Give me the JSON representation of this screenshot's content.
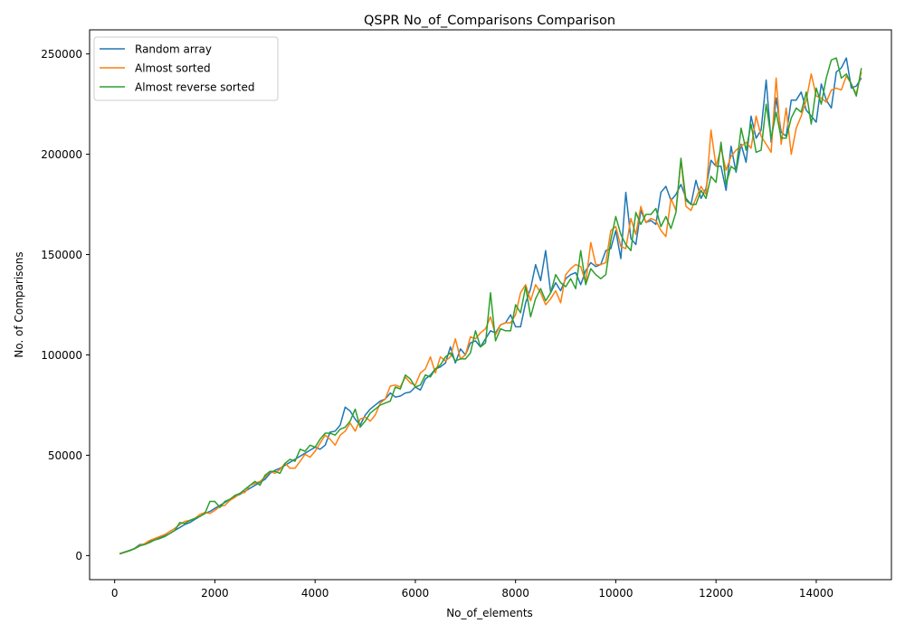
{
  "chart_data": {
    "type": "line",
    "title": "QSPR No_of_Comparisons Comparison",
    "xlabel": "No_of_elements",
    "ylabel": "No. of Comparisons",
    "xlim": [
      -500,
      15500
    ],
    "ylim": [
      -12000,
      262000
    ],
    "xticks": [
      0,
      2000,
      4000,
      6000,
      8000,
      10000,
      12000,
      14000
    ],
    "yticks": [
      0,
      50000,
      100000,
      150000,
      200000,
      250000
    ],
    "grid": false,
    "legend_position": "upper-left",
    "x": [
      100,
      200,
      300,
      400,
      500,
      600,
      700,
      800,
      900,
      1000,
      1100,
      1200,
      1300,
      1400,
      1500,
      1600,
      1700,
      1800,
      1900,
      2000,
      2100,
      2200,
      2300,
      2400,
      2500,
      2600,
      2700,
      2800,
      2900,
      3000,
      3100,
      3200,
      3300,
      3400,
      3500,
      3600,
      3700,
      3800,
      3900,
      4000,
      4100,
      4200,
      4300,
      4400,
      4500,
      4600,
      4700,
      4800,
      4900,
      5000,
      5100,
      5200,
      5300,
      5400,
      5500,
      5600,
      5700,
      5800,
      5900,
      6000,
      6100,
      6200,
      6300,
      6400,
      6500,
      6600,
      6700,
      6800,
      6900,
      7000,
      7100,
      7200,
      7300,
      7400,
      7500,
      7600,
      7700,
      7800,
      7900,
      8000,
      8100,
      8200,
      8300,
      8400,
      8500,
      8600,
      8700,
      8800,
      8900,
      9000,
      9100,
      9200,
      9300,
      9400,
      9500,
      9600,
      9700,
      9800,
      9900,
      10000,
      10100,
      10200,
      10300,
      10400,
      10500,
      10600,
      10700,
      10800,
      10900,
      11000,
      11100,
      11200,
      11300,
      11400,
      11500,
      11600,
      11700,
      11800,
      11900,
      12000,
      12100,
      12200,
      12300,
      12400,
      12500,
      12600,
      12700,
      12800,
      12900,
      13000,
      13100,
      13200,
      13300,
      13400,
      13500,
      13600,
      13700,
      13800,
      13900,
      14000,
      14100,
      14200,
      14300,
      14400,
      14500,
      14600,
      14700,
      14800,
      14900
    ],
    "series": [
      {
        "name": "Random array",
        "color": "#1f77b4",
        "values": [
          1000,
          1800,
          2600,
          3600,
          5500,
          5600,
          7000,
          8000,
          9000,
          9800,
          11000,
          12500,
          14000,
          15500,
          16500,
          18000,
          19500,
          21000,
          22000,
          23500,
          25000,
          26500,
          28000,
          29500,
          30500,
          32000,
          33500,
          35000,
          36500,
          38000,
          41000,
          42500,
          43500,
          45000,
          46500,
          48000,
          49500,
          51000,
          52500,
          54000,
          53000,
          55000,
          61500,
          62000,
          65000,
          74000,
          72000,
          68000,
          65000,
          70000,
          73000,
          75000,
          77000,
          78000,
          81000,
          79000,
          79500,
          81000,
          81500,
          84000,
          82500,
          88000,
          90000,
          93000,
          94000,
          96000,
          104000,
          96000,
          103000,
          100000,
          106000,
          107000,
          104000,
          108000,
          112000,
          111000,
          115000,
          116000,
          120000,
          114000,
          114000,
          126000,
          133000,
          145000,
          137000,
          152000,
          131000,
          136000,
          132000,
          138000,
          140000,
          141000,
          135000,
          142000,
          146000,
          144000,
          145000,
          152000,
          153000,
          162000,
          148000,
          181000,
          158000,
          155000,
          172000,
          166000,
          167000,
          165000,
          181000,
          184000,
          177000,
          180000,
          185000,
          178000,
          175000,
          187000,
          178000,
          183000,
          197000,
          194000,
          194000,
          182000,
          204000,
          191000,
          205000,
          196000,
          219000,
          208000,
          212000,
          237000,
          206000,
          228000,
          211000,
          209000,
          227000,
          227000,
          231000,
          222000,
          219000,
          216000,
          235000,
          227000,
          223000,
          241000,
          243000,
          248000,
          233000,
          234000,
          238000
        ]
      },
      {
        "name": "Almost sorted",
        "color": "#ff7f0e",
        "values": [
          1000,
          1700,
          2500,
          3500,
          5000,
          6000,
          7500,
          8500,
          9500,
          10500,
          12000,
          13500,
          15500,
          17000,
          17500,
          18500,
          20500,
          21500,
          21000,
          22500,
          24500,
          25000,
          27500,
          29000,
          31000,
          31500,
          35000,
          36000,
          37000,
          39000,
          42000,
          41000,
          43000,
          46000,
          43500,
          43500,
          47000,
          50500,
          49000,
          52000,
          56000,
          60000,
          58000,
          55000,
          60000,
          62000,
          66000,
          62000,
          68000,
          69000,
          67000,
          70000,
          76000,
          78000,
          84500,
          85000,
          84000,
          89000,
          86000,
          85000,
          91000,
          93000,
          99000,
          91000,
          99000,
          97000,
          99000,
          108000,
          98000,
          100000,
          109000,
          108000,
          111000,
          113000,
          119000,
          110000,
          115000,
          116000,
          116000,
          120000,
          131000,
          135000,
          127000,
          135000,
          131000,
          125000,
          128000,
          132000,
          126000,
          140000,
          143000,
          145000,
          144000,
          136000,
          156000,
          145000,
          145000,
          146000,
          162000,
          164000,
          154000,
          153000,
          168000,
          160000,
          174000,
          166000,
          168000,
          167000,
          162000,
          159000,
          178000,
          172000,
          197000,
          174000,
          172000,
          178000,
          184000,
          180000,
          212000,
          194000,
          203000,
          192000,
          199000,
          202000,
          204000,
          206000,
          203000,
          219000,
          209000,
          205000,
          201000,
          238000,
          205000,
          223000,
          200000,
          213000,
          219000,
          227000,
          240000,
          229000,
          228000,
          226000,
          232000,
          233000,
          232000,
          239000,
          235000,
          230000,
          241000
        ]
      },
      {
        "name": "Almost reverse sorted",
        "color": "#2ca02c",
        "values": [
          800,
          1600,
          2400,
          3400,
          4800,
          5500,
          6500,
          7800,
          8500,
          9500,
          11000,
          12500,
          16500,
          16000,
          17500,
          18500,
          19500,
          21000,
          27000,
          27000,
          24000,
          27000,
          28000,
          30000,
          31000,
          33000,
          35000,
          37000,
          35000,
          40000,
          42000,
          42000,
          41000,
          46000,
          48000,
          47000,
          53000,
          52000,
          55000,
          54000,
          58000,
          61000,
          61000,
          60000,
          63000,
          64000,
          67000,
          73000,
          64000,
          67000,
          71000,
          73000,
          75000,
          76000,
          77000,
          84000,
          83000,
          90000,
          88000,
          84000,
          85000,
          90000,
          89000,
          93000,
          95000,
          99000,
          101000,
          97000,
          98000,
          98000,
          101000,
          112000,
          104000,
          106000,
          131000,
          107000,
          113000,
          112000,
          112000,
          125000,
          121000,
          134000,
          119000,
          128000,
          133000,
          127000,
          131000,
          140000,
          136000,
          134000,
          138000,
          133000,
          152000,
          135000,
          143000,
          140000,
          138000,
          140000,
          157000,
          169000,
          160000,
          155000,
          152000,
          171000,
          165000,
          170000,
          170000,
          173000,
          164000,
          169000,
          163000,
          171000,
          198000,
          177000,
          175000,
          175000,
          182000,
          178000,
          189000,
          186000,
          206000,
          185000,
          194000,
          192000,
          213000,
          202000,
          215000,
          201000,
          202000,
          225000,
          208000,
          221000,
          208000,
          208000,
          218000,
          223000,
          221000,
          231000,
          215000,
          233000,
          225000,
          238000,
          247000,
          248000,
          238000,
          240000,
          235000,
          229000,
          243000
        ]
      }
    ]
  }
}
